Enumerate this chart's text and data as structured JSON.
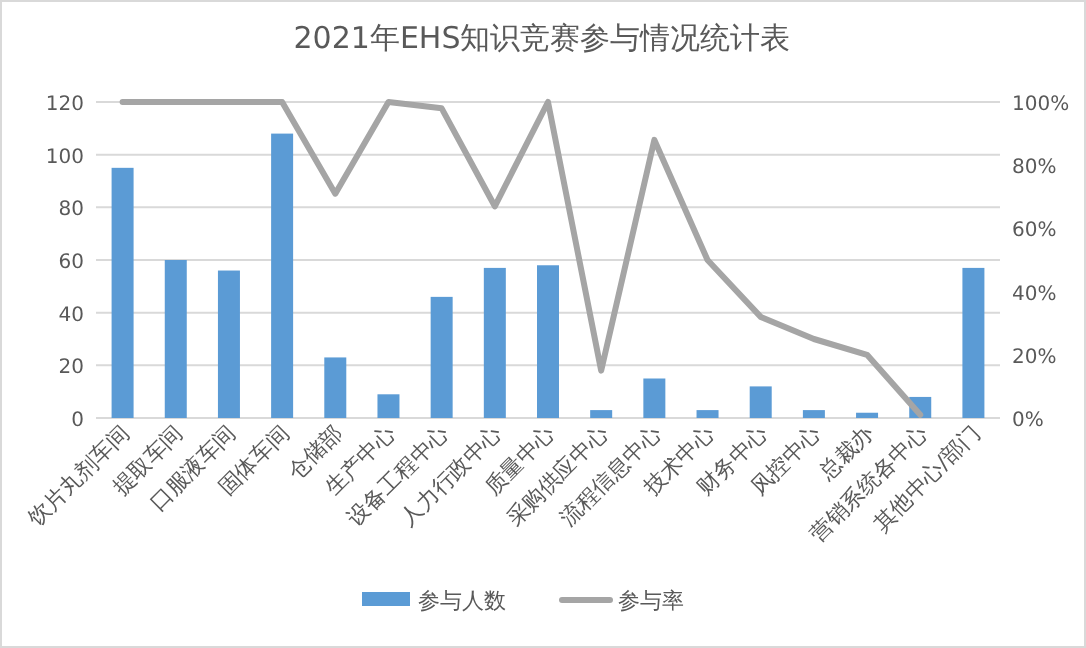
{
  "chart_data": {
    "type": "bar",
    "title": "2021年EHS知识竞赛参与情况统计表",
    "categories": [
      "饮片丸剂车间",
      "提取车间",
      "口服液车间",
      "固体车间",
      "仓储部",
      "生产中心",
      "设备工程中心",
      "人力行政中心",
      "质量中心",
      "采购供应中心",
      "流程信息中心",
      "技术中心",
      "财务中心",
      "风控中心",
      "总裁办",
      "营销系统各中心",
      "其他中心/部门"
    ],
    "series": [
      {
        "name": "参与人数",
        "color": "#5b9bd5",
        "values": [
          95,
          60,
          56,
          108,
          23,
          9,
          46,
          57,
          58,
          3,
          15,
          3,
          12,
          3,
          2,
          8,
          57
        ]
      },
      {
        "name": "参与率",
        "type": "line",
        "axis": "y2",
        "color": "#a5a5a5",
        "values": [
          100,
          100,
          100,
          100,
          71,
          100,
          98,
          67,
          100,
          15,
          88,
          50,
          32,
          25,
          20,
          1,
          null
        ]
      }
    ],
    "ylim": [
      0,
      120
    ],
    "yticks": [
      0,
      20,
      40,
      60,
      80,
      100,
      120
    ],
    "y2lim": [
      0,
      100
    ],
    "y2ticks": [
      {
        "value": 0,
        "label": "0%"
      },
      {
        "value": 20,
        "label": "20%"
      },
      {
        "value": 40,
        "label": "40%"
      },
      {
        "value": 60,
        "label": "60%"
      },
      {
        "value": 80,
        "label": "80%"
      },
      {
        "value": 100,
        "label": "100%"
      }
    ],
    "grid": "y",
    "legend": "bottom",
    "marker": "none",
    "line_style": "solid"
  }
}
